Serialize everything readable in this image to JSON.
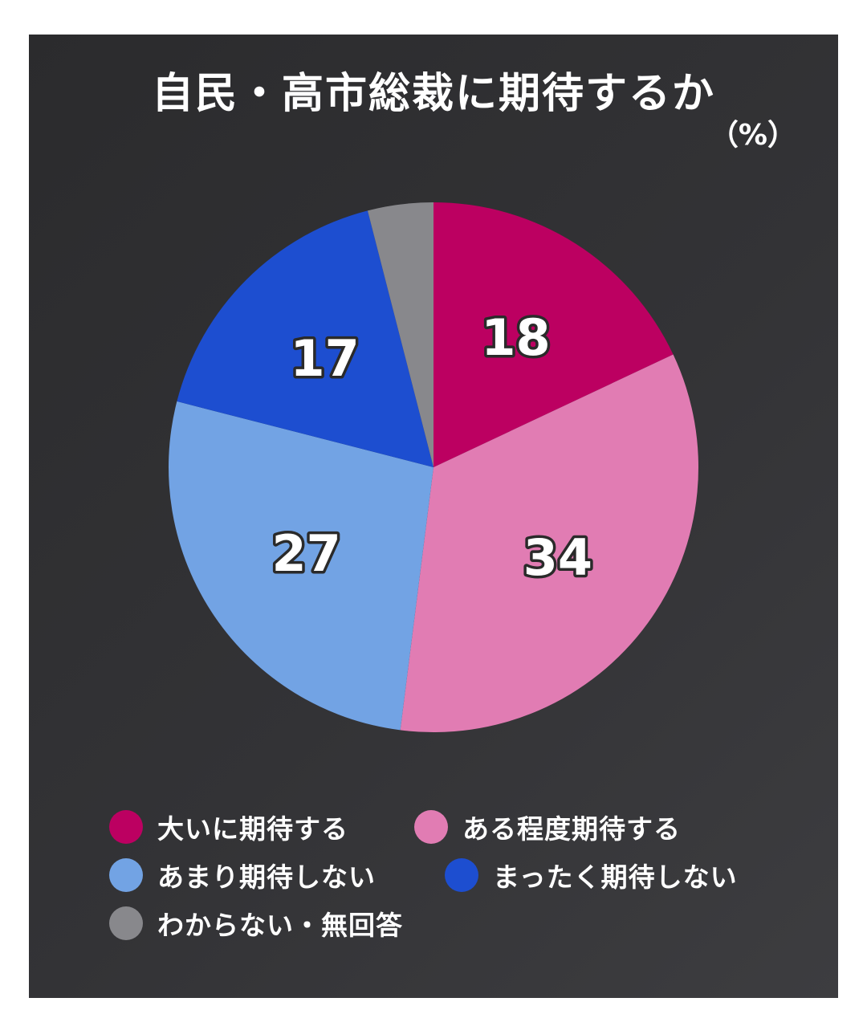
{
  "chart_data": {
    "type": "pie",
    "title": "自民・高市総裁に期待するか",
    "unit": "（%）",
    "series": [
      {
        "name": "大いに期待する",
        "value": 18,
        "label": "18",
        "color": "#bc0061"
      },
      {
        "name": "ある程度期待する",
        "value": 34,
        "label": "34",
        "color": "#e17cb3"
      },
      {
        "name": "あまり期待しない",
        "value": 27,
        "label": "27",
        "color": "#72a3e4"
      },
      {
        "name": "まったく期待しない",
        "value": 17,
        "label": "17",
        "color": "#1d4ed0"
      },
      {
        "name": "わからない・無回答",
        "value": 4,
        "label": "",
        "color": "#88888c"
      }
    ],
    "legend": "bottom"
  }
}
